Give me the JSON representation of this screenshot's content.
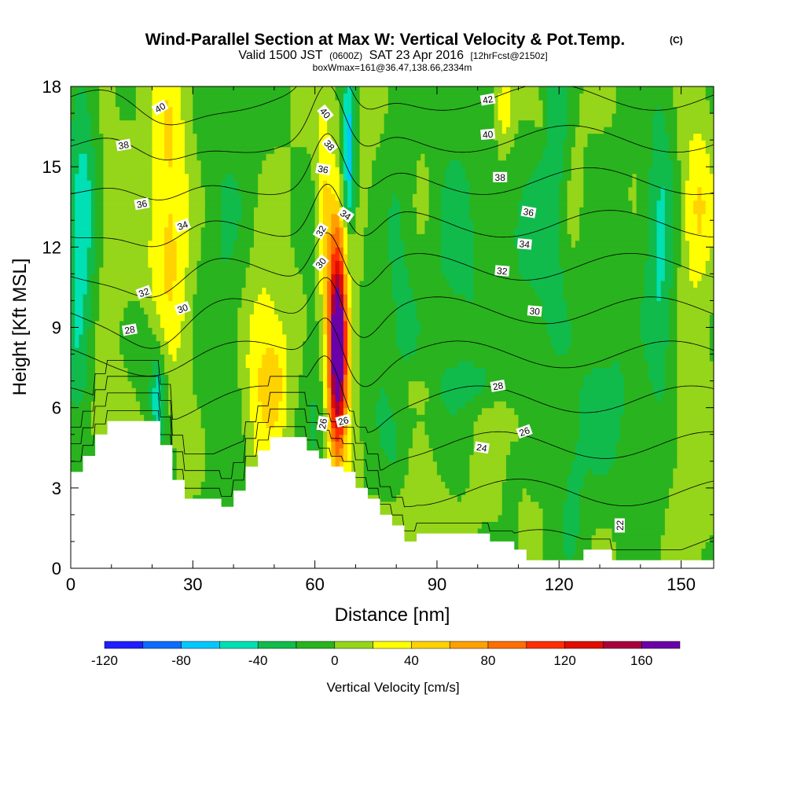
{
  "chart_data": {
    "type": "heatmap",
    "title": "Wind-Parallel Section at Max W: Vertical Velocity & Pot.Temp.",
    "title_mark": "(C)",
    "subtitle_valid": "Valid 1500 JST",
    "subtitle_utc": "(0600Z)",
    "subtitle_date": "SAT 23 Apr 2016",
    "subtitle_fcst": "[12hrFcst@2150z]",
    "subtitle_box": "boxWmax=161@36.47,138.66,2334m",
    "xlabel": "Distance [nm]",
    "ylabel": "Height [Kft MSL]",
    "xlim": [
      0,
      158
    ],
    "ylim": [
      0,
      18
    ],
    "x_ticks": [
      0,
      30,
      60,
      90,
      120,
      150
    ],
    "x_tick_labels": [
      "0",
      "30",
      "60",
      "90",
      "120",
      "150"
    ],
    "y_ticks": [
      0,
      3,
      6,
      9,
      12,
      15,
      18
    ],
    "y_tick_labels": [
      "0",
      "3",
      "6",
      "9",
      "12",
      "15",
      "18"
    ],
    "colorbar": {
      "label": "Vertical Velocity [cm/s]",
      "bounds": [
        -120,
        -100,
        -80,
        -60,
        -40,
        -20,
        0,
        20,
        40,
        60,
        80,
        100,
        120,
        140,
        160,
        180
      ],
      "tick_values": [
        -120,
        -80,
        -40,
        0,
        40,
        80,
        120,
        160
      ],
      "tick_labels": [
        "-120",
        "-80",
        "-40",
        "0",
        "40",
        "80",
        "120",
        "160"
      ],
      "colors": [
        "#1e1eff",
        "#0a6cff",
        "#00c8ff",
        "#00e0b4",
        "#10bb4c",
        "#29b31e",
        "#95d51a",
        "#ffff00",
        "#ffd200",
        "#ffa000",
        "#ff6e00",
        "#ff2d00",
        "#e00c00",
        "#a8003c",
        "#6a00a8"
      ]
    },
    "terrain_kft": [
      [
        0,
        3.6
      ],
      [
        3,
        3.6
      ],
      [
        3,
        4.2
      ],
      [
        6,
        4.2
      ],
      [
        6,
        5.0
      ],
      [
        9,
        5.0
      ],
      [
        9,
        5.5
      ],
      [
        22,
        5.5
      ],
      [
        22,
        4.6
      ],
      [
        25,
        4.6
      ],
      [
        25,
        3.3
      ],
      [
        28,
        3.3
      ],
      [
        28,
        2.6
      ],
      [
        37,
        2.6
      ],
      [
        37,
        2.3
      ],
      [
        40,
        2.3
      ],
      [
        40,
        2.9
      ],
      [
        43,
        2.9
      ],
      [
        43,
        3.8
      ],
      [
        46,
        3.8
      ],
      [
        46,
        4.4
      ],
      [
        49,
        4.4
      ],
      [
        49,
        4.9
      ],
      [
        58,
        4.9
      ],
      [
        58,
        4.4
      ],
      [
        61,
        4.4
      ],
      [
        61,
        4.1
      ],
      [
        64,
        4.1
      ],
      [
        64,
        3.8
      ],
      [
        67,
        3.8
      ],
      [
        67,
        3.6
      ],
      [
        70,
        3.6
      ],
      [
        70,
        3.0
      ],
      [
        73,
        3.0
      ],
      [
        73,
        2.6
      ],
      [
        76,
        2.6
      ],
      [
        76,
        2.0
      ],
      [
        79,
        2.0
      ],
      [
        79,
        1.6
      ],
      [
        82,
        1.6
      ],
      [
        82,
        1.0
      ],
      [
        85,
        1.0
      ],
      [
        85,
        1.3
      ],
      [
        103,
        1.3
      ],
      [
        103,
        1.0
      ],
      [
        109,
        1.0
      ],
      [
        109,
        0.7
      ],
      [
        112,
        0.7
      ],
      [
        112,
        0.3
      ],
      [
        126,
        0.3
      ],
      [
        126,
        0.7
      ],
      [
        133,
        0.7
      ],
      [
        133,
        0.3
      ],
      [
        158,
        0.3
      ]
    ],
    "w_blobs_cm_s": [
      {
        "x": 65.5,
        "y": 8.2,
        "sx": 1.5,
        "sy": 2.7,
        "amp": 160
      },
      {
        "x": 66.0,
        "y": 9.5,
        "sx": 2.5,
        "sy": 3.5,
        "amp": 60
      },
      {
        "x": 24,
        "y": 14.5,
        "sx": 3.5,
        "sy": 4.5,
        "amp": 42
      },
      {
        "x": 24,
        "y": 10,
        "sx": 5,
        "sy": 2.5,
        "amp": 15
      },
      {
        "x": 47,
        "y": 7.5,
        "sx": 3.5,
        "sy": 2.8,
        "amp": 45
      },
      {
        "x": 51,
        "y": 7.2,
        "sx": 2,
        "sy": 1.5,
        "amp": 25
      },
      {
        "x": 154,
        "y": 13.5,
        "sx": 2.8,
        "sy": 2.5,
        "amp": 38
      },
      {
        "x": 106.5,
        "y": 17.3,
        "sx": 1.4,
        "sy": 1.0,
        "amp": 40
      },
      {
        "x": 116,
        "y": 16.8,
        "sx": 1.5,
        "sy": 1.0,
        "amp": 25
      },
      {
        "x": 62,
        "y": 14,
        "sx": 1.3,
        "sy": 2.5,
        "amp": 35
      },
      {
        "x": 123,
        "y": 14,
        "sx": 2.5,
        "sy": 3,
        "amp": 20
      },
      {
        "x": 85,
        "y": 14,
        "sx": 3,
        "sy": 3,
        "amp": 15
      },
      {
        "x": 70,
        "y": 16,
        "sx": 3,
        "sy": 2,
        "amp": 15
      },
      {
        "x": 85,
        "y": 6.7,
        "sx": 3,
        "sy": 0.5,
        "amp": 22
      },
      {
        "x": 85,
        "y": 2,
        "sx": 8,
        "sy": 1.5,
        "amp": 15
      },
      {
        "x": 105,
        "y": 5,
        "sx": 6,
        "sy": 2,
        "amp": 15
      },
      {
        "x": 150,
        "y": 4,
        "sx": 7,
        "sy": 4,
        "amp": 12
      },
      {
        "x": 10,
        "y": 12,
        "sx": 4,
        "sy": 5,
        "amp": 10
      },
      {
        "x": 5,
        "y": 5.6,
        "sx": 4,
        "sy": 0.8,
        "amp": 15
      },
      {
        "x": 18,
        "y": 3,
        "sx": 2.5,
        "sy": 0.5,
        "amp": 25
      },
      {
        "x": 68,
        "y": 12.6,
        "sx": 1.8,
        "sy": 0.5,
        "amp": 20
      },
      {
        "x": 68.5,
        "y": 15.8,
        "sx": 1.2,
        "sy": 2.8,
        "amp": -75
      },
      {
        "x": 67.5,
        "y": 13.5,
        "sx": 1.5,
        "sy": 1.5,
        "amp": -35
      },
      {
        "x": 3,
        "y": 13.5,
        "sx": 2.5,
        "sy": 4.5,
        "amp": -45
      },
      {
        "x": 1.5,
        "y": 8.5,
        "sx": 2,
        "sy": 3,
        "amp": -25
      },
      {
        "x": 21.5,
        "y": 6.3,
        "sx": 1.3,
        "sy": 1.2,
        "amp": -55
      },
      {
        "x": 20,
        "y": 8.3,
        "sx": 3,
        "sy": 1.5,
        "amp": -25
      },
      {
        "x": 119,
        "y": 16,
        "sx": 3,
        "sy": 4,
        "amp": -40
      },
      {
        "x": 112,
        "y": 11,
        "sx": 4,
        "sy": 3,
        "amp": -20
      },
      {
        "x": 145,
        "y": 14,
        "sx": 2.5,
        "sy": 4,
        "amp": -30
      },
      {
        "x": 145,
        "y": 9,
        "sx": 2.5,
        "sy": 3,
        "amp": -25
      },
      {
        "x": 95,
        "y": 11,
        "sx": 6,
        "sy": 5,
        "amp": -25
      },
      {
        "x": 38,
        "y": 11,
        "sx": 5,
        "sy": 6,
        "amp": -20
      },
      {
        "x": 82,
        "y": 13,
        "sx": 3,
        "sy": 5,
        "amp": -25
      },
      {
        "x": 130,
        "y": 9,
        "sx": 8,
        "sy": 4,
        "amp": -20
      },
      {
        "x": 60,
        "y": 7,
        "sx": 2,
        "sy": 3,
        "amp": -20
      },
      {
        "x": 76,
        "y": 8,
        "sx": 3,
        "sy": 3,
        "amp": -20
      },
      {
        "x": 100,
        "y": 6.8,
        "sx": 8,
        "sy": 0.6,
        "amp": -20
      },
      {
        "x": 80,
        "y": 4,
        "sx": 2,
        "sy": 1,
        "amp": -15
      },
      {
        "x": 108,
        "y": 2.5,
        "sx": 1.2,
        "sy": 1.5,
        "amp": -25
      },
      {
        "x": 123,
        "y": 2.5,
        "sx": 2.5,
        "sy": 2,
        "amp": -22
      },
      {
        "x": 143,
        "y": 2.5,
        "sx": 2.5,
        "sy": 2,
        "amp": -20
      },
      {
        "x": 132,
        "y": 5.5,
        "sx": 5,
        "sy": 1.5,
        "amp": -15
      }
    ],
    "theta_contours_c": [
      22,
      24,
      26,
      28,
      30,
      32,
      34,
      36,
      38,
      40,
      42
    ],
    "contour_labels": [
      {
        "value": "40",
        "x": 22,
        "y": 17.2,
        "angle": -30
      },
      {
        "value": "38",
        "x": 13,
        "y": 15.8,
        "angle": -10
      },
      {
        "value": "36",
        "x": 17.5,
        "y": 13.6,
        "angle": -10
      },
      {
        "value": "34",
        "x": 27.5,
        "y": 12.8,
        "angle": -20
      },
      {
        "value": "32",
        "x": 18,
        "y": 10.3,
        "angle": -20
      },
      {
        "value": "30",
        "x": 27.5,
        "y": 9.7,
        "angle": -20
      },
      {
        "value": "28",
        "x": 14.5,
        "y": 8.9,
        "angle": -10
      },
      {
        "value": "40",
        "x": 62.5,
        "y": 17.0,
        "angle": 50
      },
      {
        "value": "38",
        "x": 63.5,
        "y": 15.8,
        "angle": 50
      },
      {
        "value": "36",
        "x": 62,
        "y": 14.9,
        "angle": 10
      },
      {
        "value": "34",
        "x": 67.5,
        "y": 13.2,
        "angle": 35
      },
      {
        "value": "32",
        "x": 61.5,
        "y": 12.6,
        "angle": -60
      },
      {
        "value": "30",
        "x": 61.5,
        "y": 11.4,
        "angle": -50
      },
      {
        "value": "26",
        "x": 62,
        "y": 5.4,
        "angle": -80
      },
      {
        "value": "26",
        "x": 67,
        "y": 5.5,
        "angle": -15
      },
      {
        "value": "42",
        "x": 102.5,
        "y": 17.5,
        "angle": -10
      },
      {
        "value": "40",
        "x": 102.5,
        "y": 16.2,
        "angle": -5
      },
      {
        "value": "38",
        "x": 105.5,
        "y": 14.6,
        "angle": 0
      },
      {
        "value": "36",
        "x": 112.5,
        "y": 13.3,
        "angle": 10
      },
      {
        "value": "34",
        "x": 111.5,
        "y": 12.1,
        "angle": 5
      },
      {
        "value": "32",
        "x": 106,
        "y": 11.1,
        "angle": 5
      },
      {
        "value": "30",
        "x": 114,
        "y": 9.6,
        "angle": 5
      },
      {
        "value": "28",
        "x": 105,
        "y": 6.8,
        "angle": -10
      },
      {
        "value": "26",
        "x": 111.5,
        "y": 5.1,
        "angle": -20
      },
      {
        "value": "24",
        "x": 101,
        "y": 4.5,
        "angle": 10
      },
      {
        "value": "22",
        "x": 135,
        "y": 1.6,
        "angle": -90
      }
    ]
  }
}
